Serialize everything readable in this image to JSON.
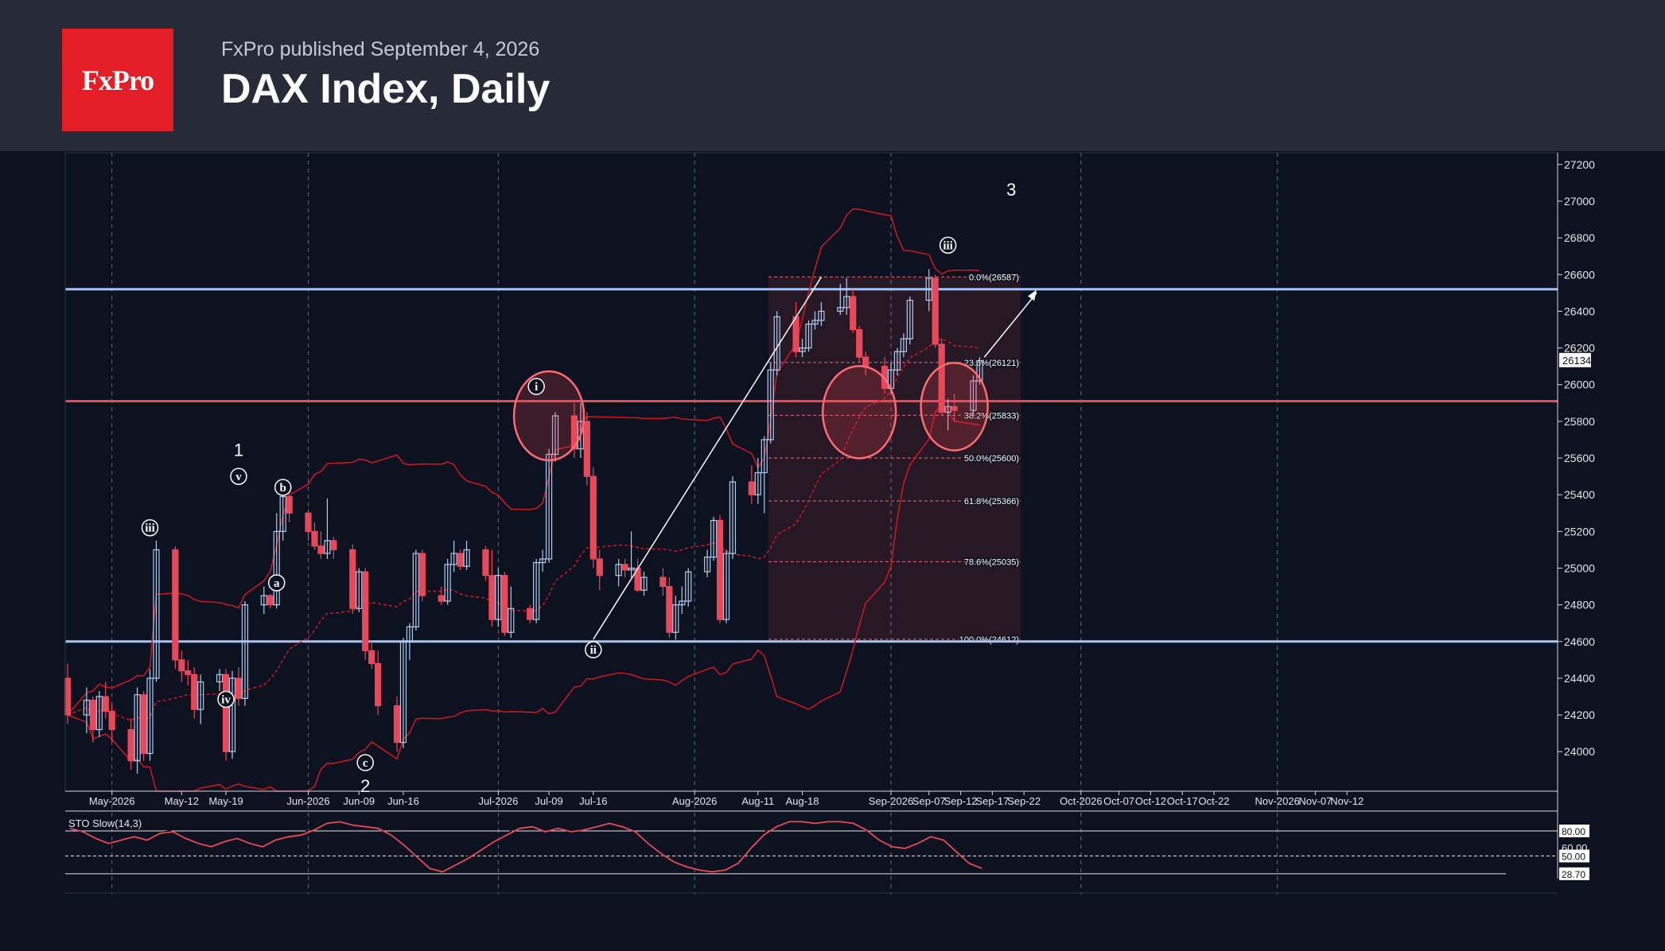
{
  "header": {
    "logo_text": "FxPro",
    "published": "FxPro published September 4, 2026",
    "title": "DAX Index, Daily"
  },
  "colors": {
    "background": "#0c1220",
    "header_bg": "#272b37",
    "logo_bg": "#e41e26",
    "bull_candle": "#aecbf0",
    "bear_candle": "#e8495a",
    "support_line": "#a7c2f6",
    "pivot_line": "#f2464f",
    "bollinger": "#c8171f"
  },
  "chart_data": [
    {
      "type": "candlestick",
      "title": "DAX Index, Daily",
      "y_axis_ticks": [
        24000,
        24200,
        24400,
        24600,
        24800,
        25000,
        25200,
        25400,
        25600,
        25800,
        26000,
        26200,
        26400,
        26600,
        26800,
        27000,
        27200
      ],
      "ylim": [
        23800,
        27260
      ],
      "current_price_label": "26134",
      "x_axis_labels": [
        "May-2026",
        "May-12",
        "May-19",
        "Jun-2026",
        "Jun-09",
        "Jun-16",
        "Jul-2026",
        "Jul-09",
        "Jul-16",
        "Aug-2026",
        "Aug-11",
        "Aug-18",
        "Sep-2026",
        "Sep-07",
        "Sep-12",
        "Sep-17",
        "Sep-22",
        "Oct-2026",
        "Oct-07",
        "Oct-12",
        "Oct-17",
        "Oct-22",
        "Nov-2026",
        "Nov-07",
        "Nov-12"
      ],
      "horizontal_levels": [
        {
          "kind": "resistance",
          "value": 26520,
          "color": "#a7c2f6"
        },
        {
          "kind": "pivot",
          "value": 25910,
          "color": "#f2464f"
        },
        {
          "kind": "support",
          "value": 24600,
          "color": "#a7c2f6"
        }
      ],
      "fibonacci": {
        "levels": [
          {
            "label": "0.0%(26587)",
            "value": 26587
          },
          {
            "label": "23.6%(26121)",
            "value": 26121
          },
          {
            "label": "38.2%(25833)",
            "value": 25833
          },
          {
            "label": "50.0%(25600)",
            "value": 25600
          },
          {
            "label": "61.8%(25366)",
            "value": 25366
          },
          {
            "label": "78.6%(25035)",
            "value": 25035
          },
          {
            "label": "100.0%(24612)",
            "value": 24612
          }
        ]
      },
      "wave_labels": [
        {
          "text": "iii",
          "date": "2026-05-07",
          "price": 25220
        },
        {
          "text": "v",
          "date": "2026-05-21",
          "price": 25500
        },
        {
          "text": "b",
          "date": "2026-05-28",
          "price": 25440
        },
        {
          "text": "a",
          "date": "2026-05-27",
          "price": 24920
        },
        {
          "text": "iv",
          "date": "2026-05-19",
          "price": 24285
        },
        {
          "text": "c",
          "date": "2026-06-10",
          "price": 23940
        },
        {
          "text": "i",
          "date": "2026-07-07",
          "price": 25990
        },
        {
          "text": "ii",
          "date": "2026-07-16",
          "price": 24555
        },
        {
          "text": "iii",
          "date": "2026-09-10",
          "price": 26760
        }
      ],
      "degree_labels": [
        {
          "text": "1",
          "date": "2026-05-21",
          "price": 25610
        },
        {
          "text": "2",
          "date": "2026-06-10",
          "price": 23780
        },
        {
          "text": "3",
          "date": "2026-09-20",
          "price": 27030
        }
      ],
      "candles": [
        {
          "date": "2026-04-24",
          "o": 24400,
          "h": 24480,
          "l": 24150,
          "c": 24200
        },
        {
          "date": "2026-04-27",
          "o": 24200,
          "h": 24350,
          "l": 24100,
          "c": 24280
        },
        {
          "date": "2026-04-28",
          "o": 24280,
          "h": 24300,
          "l": 24050,
          "c": 24120
        },
        {
          "date": "2026-04-29",
          "o": 24120,
          "h": 24330,
          "l": 24080,
          "c": 24300
        },
        {
          "date": "2026-04-30",
          "o": 24300,
          "h": 24380,
          "l": 24180,
          "c": 24220
        },
        {
          "date": "2026-05-01",
          "o": 24220,
          "h": 24260,
          "l": 24050,
          "c": 24120
        },
        {
          "date": "2026-05-04",
          "o": 24120,
          "h": 24180,
          "l": 23900,
          "c": 23950
        },
        {
          "date": "2026-05-05",
          "o": 23950,
          "h": 24350,
          "l": 23880,
          "c": 24310
        },
        {
          "date": "2026-05-06",
          "o": 24310,
          "h": 24330,
          "l": 23950,
          "c": 23990
        },
        {
          "date": "2026-05-07",
          "o": 23990,
          "h": 24450,
          "l": 23950,
          "c": 24400
        },
        {
          "date": "2026-05-08",
          "o": 24400,
          "h": 25150,
          "l": 24380,
          "c": 25100
        },
        {
          "date": "2026-05-11",
          "o": 25100,
          "h": 25120,
          "l": 24450,
          "c": 24500
        },
        {
          "date": "2026-05-12",
          "o": 24500,
          "h": 24550,
          "l": 24380,
          "c": 24440
        },
        {
          "date": "2026-05-13",
          "o": 24440,
          "h": 24500,
          "l": 24360,
          "c": 24420
        },
        {
          "date": "2026-05-14",
          "o": 24420,
          "h": 24460,
          "l": 24180,
          "c": 24230
        },
        {
          "date": "2026-05-15",
          "o": 24230,
          "h": 24420,
          "l": 24150,
          "c": 24380
        },
        {
          "date": "2026-05-18",
          "o": 24380,
          "h": 24450,
          "l": 24330,
          "c": 24420
        },
        {
          "date": "2026-05-19",
          "o": 24420,
          "h": 24450,
          "l": 23950,
          "c": 24000
        },
        {
          "date": "2026-05-20",
          "o": 24000,
          "h": 24440,
          "l": 23960,
          "c": 24400
        },
        {
          "date": "2026-05-21",
          "o": 24400,
          "h": 24460,
          "l": 24250,
          "c": 24290
        },
        {
          "date": "2026-05-22",
          "o": 24290,
          "h": 24820,
          "l": 24250,
          "c": 24800
        },
        {
          "date": "2026-05-25",
          "o": 24800,
          "h": 24900,
          "l": 24750,
          "c": 24850
        },
        {
          "date": "2026-05-26",
          "o": 24850,
          "h": 24860,
          "l": 24780,
          "c": 24800
        },
        {
          "date": "2026-05-27",
          "o": 24800,
          "h": 25300,
          "l": 24780,
          "c": 25200
        },
        {
          "date": "2026-05-28",
          "o": 25200,
          "h": 25430,
          "l": 25150,
          "c": 25390
        },
        {
          "date": "2026-05-29",
          "o": 25390,
          "h": 25400,
          "l": 25250,
          "c": 25300
        },
        {
          "date": "2026-06-01",
          "o": 25300,
          "h": 25320,
          "l": 25150,
          "c": 25200
        },
        {
          "date": "2026-06-02",
          "o": 25200,
          "h": 25250,
          "l": 25100,
          "c": 25120
        },
        {
          "date": "2026-06-03",
          "o": 25120,
          "h": 25200,
          "l": 25050,
          "c": 25080
        },
        {
          "date": "2026-06-04",
          "o": 25080,
          "h": 25380,
          "l": 25050,
          "c": 25150
        },
        {
          "date": "2026-06-05",
          "o": 25150,
          "h": 25170,
          "l": 25050,
          "c": 25100
        },
        {
          "date": "2026-06-08",
          "o": 25100,
          "h": 25130,
          "l": 24750,
          "c": 24780
        },
        {
          "date": "2026-06-09",
          "o": 24780,
          "h": 25000,
          "l": 24760,
          "c": 24980
        },
        {
          "date": "2026-06-10",
          "o": 24980,
          "h": 25000,
          "l": 24500,
          "c": 24550
        },
        {
          "date": "2026-06-11",
          "o": 24550,
          "h": 24600,
          "l": 24450,
          "c": 24480
        },
        {
          "date": "2026-06-12",
          "o": 24480,
          "h": 24550,
          "l": 24200,
          "c": 24250
        },
        {
          "date": "2026-06-15",
          "o": 24250,
          "h": 24300,
          "l": 24000,
          "c": 24050
        },
        {
          "date": "2026-06-16",
          "o": 24050,
          "h": 24620,
          "l": 24020,
          "c": 24600
        },
        {
          "date": "2026-06-17",
          "o": 24600,
          "h": 24700,
          "l": 24500,
          "c": 24680
        },
        {
          "date": "2026-06-18",
          "o": 24680,
          "h": 25100,
          "l": 24660,
          "c": 25080
        },
        {
          "date": "2026-06-19",
          "o": 25080,
          "h": 25100,
          "l": 24820,
          "c": 24850
        },
        {
          "date": "2026-06-22",
          "o": 24850,
          "h": 24900,
          "l": 24800,
          "c": 24820
        },
        {
          "date": "2026-06-23",
          "o": 24820,
          "h": 25050,
          "l": 24800,
          "c": 25020
        },
        {
          "date": "2026-06-24",
          "o": 25020,
          "h": 25150,
          "l": 24980,
          "c": 25080
        },
        {
          "date": "2026-06-25",
          "o": 25080,
          "h": 25100,
          "l": 24990,
          "c": 25010
        },
        {
          "date": "2026-06-26",
          "o": 25010,
          "h": 25150,
          "l": 24990,
          "c": 25100
        },
        {
          "date": "2026-06-29",
          "o": 25100,
          "h": 25120,
          "l": 24930,
          "c": 24960
        },
        {
          "date": "2026-06-30",
          "o": 24960,
          "h": 25100,
          "l": 24680,
          "c": 24720
        },
        {
          "date": "2026-07-01",
          "o": 24720,
          "h": 25000,
          "l": 24680,
          "c": 24960
        },
        {
          "date": "2026-07-02",
          "o": 24960,
          "h": 24980,
          "l": 24630,
          "c": 24650
        },
        {
          "date": "2026-07-03",
          "o": 24650,
          "h": 24900,
          "l": 24620,
          "c": 24780
        },
        {
          "date": "2026-07-06",
          "o": 24780,
          "h": 24800,
          "l": 24700,
          "c": 24720
        },
        {
          "date": "2026-07-07",
          "o": 24720,
          "h": 25050,
          "l": 24700,
          "c": 25030
        },
        {
          "date": "2026-07-08",
          "o": 25030,
          "h": 25100,
          "l": 24980,
          "c": 25050
        },
        {
          "date": "2026-07-09",
          "o": 25050,
          "h": 25650,
          "l": 25030,
          "c": 25620
        },
        {
          "date": "2026-07-10",
          "o": 25620,
          "h": 25850,
          "l": 25580,
          "c": 25830
        },
        {
          "date": "2026-07-13",
          "o": 25830,
          "h": 25900,
          "l": 25600,
          "c": 25650
        },
        {
          "date": "2026-07-14",
          "o": 25650,
          "h": 25900,
          "l": 25600,
          "c": 25800
        },
        {
          "date": "2026-07-15",
          "o": 25800,
          "h": 25850,
          "l": 25450,
          "c": 25500
        },
        {
          "date": "2026-07-16",
          "o": 25500,
          "h": 25550,
          "l": 25000,
          "c": 25050
        },
        {
          "date": "2026-07-17",
          "o": 25050,
          "h": 25100,
          "l": 24880,
          "c": 24960
        },
        {
          "date": "2026-07-20",
          "o": 24960,
          "h": 25050,
          "l": 24900,
          "c": 25020
        },
        {
          "date": "2026-07-21",
          "o": 25020,
          "h": 25050,
          "l": 24950,
          "c": 24990
        },
        {
          "date": "2026-07-22",
          "o": 24990,
          "h": 25200,
          "l": 24950,
          "c": 25000
        },
        {
          "date": "2026-07-23",
          "o": 25000,
          "h": 25050,
          "l": 24870,
          "c": 24880
        },
        {
          "date": "2026-07-24",
          "o": 24880,
          "h": 24980,
          "l": 24850,
          "c": 24950
        },
        {
          "date": "2026-07-27",
          "o": 24950,
          "h": 25000,
          "l": 24850,
          "c": 24900
        },
        {
          "date": "2026-07-28",
          "o": 24900,
          "h": 24950,
          "l": 24620,
          "c": 24650
        },
        {
          "date": "2026-07-29",
          "o": 24650,
          "h": 24850,
          "l": 24610,
          "c": 24800
        },
        {
          "date": "2026-07-30",
          "o": 24800,
          "h": 24900,
          "l": 24750,
          "c": 24820
        },
        {
          "date": "2026-07-31",
          "o": 24820,
          "h": 25000,
          "l": 24790,
          "c": 24980
        },
        {
          "date": "2026-08-03",
          "o": 24980,
          "h": 25100,
          "l": 24950,
          "c": 25060
        },
        {
          "date": "2026-08-04",
          "o": 25060,
          "h": 25280,
          "l": 25040,
          "c": 25260
        },
        {
          "date": "2026-08-05",
          "o": 25260,
          "h": 25290,
          "l": 24700,
          "c": 24720
        },
        {
          "date": "2026-08-06",
          "o": 24720,
          "h": 25100,
          "l": 24700,
          "c": 25080
        },
        {
          "date": "2026-08-07",
          "o": 25080,
          "h": 25500,
          "l": 25050,
          "c": 25470
        },
        {
          "date": "2026-08-10",
          "o": 25470,
          "h": 25560,
          "l": 25350,
          "c": 25400
        },
        {
          "date": "2026-08-11",
          "o": 25400,
          "h": 25600,
          "l": 25350,
          "c": 25520
        },
        {
          "date": "2026-08-12",
          "o": 25520,
          "h": 25720,
          "l": 25300,
          "c": 25700
        },
        {
          "date": "2026-08-13",
          "o": 25700,
          "h": 26120,
          "l": 25680,
          "c": 26080
        },
        {
          "date": "2026-08-14",
          "o": 26080,
          "h": 26400,
          "l": 26050,
          "c": 26370
        },
        {
          "date": "2026-08-17",
          "o": 26370,
          "h": 26450,
          "l": 26150,
          "c": 26180
        },
        {
          "date": "2026-08-18",
          "o": 26180,
          "h": 26250,
          "l": 26150,
          "c": 26200
        },
        {
          "date": "2026-08-19",
          "o": 26200,
          "h": 26350,
          "l": 26180,
          "c": 26330
        },
        {
          "date": "2026-08-20",
          "o": 26330,
          "h": 26400,
          "l": 26300,
          "c": 26350
        },
        {
          "date": "2026-08-21",
          "o": 26350,
          "h": 26450,
          "l": 26320,
          "c": 26400
        },
        {
          "date": "2026-08-24",
          "o": 26400,
          "h": 26550,
          "l": 26380,
          "c": 26420
        },
        {
          "date": "2026-08-25",
          "o": 26420,
          "h": 26580,
          "l": 26380,
          "c": 26480
        },
        {
          "date": "2026-08-26",
          "o": 26480,
          "h": 26520,
          "l": 26280,
          "c": 26300
        },
        {
          "date": "2026-08-27",
          "o": 26300,
          "h": 26320,
          "l": 26120,
          "c": 26150
        },
        {
          "date": "2026-08-28",
          "o": 26150,
          "h": 26180,
          "l": 26050,
          "c": 26100
        },
        {
          "date": "2026-08-31",
          "o": 26100,
          "h": 26150,
          "l": 25950,
          "c": 25980
        },
        {
          "date": "2026-09-01",
          "o": 25980,
          "h": 26120,
          "l": 25950,
          "c": 26080
        },
        {
          "date": "2026-09-02",
          "o": 26080,
          "h": 26200,
          "l": 26050,
          "c": 26180
        },
        {
          "date": "2026-09-03",
          "o": 26180,
          "h": 26280,
          "l": 26150,
          "c": 26250
        },
        {
          "date": "2026-09-04",
          "o": 26250,
          "h": 26480,
          "l": 26220,
          "c": 26460
        },
        {
          "date": "2026-09-07",
          "o": 26460,
          "h": 26630,
          "l": 26400,
          "c": 26580
        },
        {
          "date": "2026-09-08",
          "o": 26580,
          "h": 26600,
          "l": 26200,
          "c": 26220
        },
        {
          "date": "2026-09-09",
          "o": 26220,
          "h": 26250,
          "l": 25830,
          "c": 25850
        },
        {
          "date": "2026-09-10",
          "o": 25850,
          "h": 25920,
          "l": 25750,
          "c": 25880
        },
        {
          "date": "2026-09-11",
          "o": 25880,
          "h": 25950,
          "l": 25800,
          "c": 25860
        },
        {
          "date": "2026-09-14",
          "o": 25860,
          "h": 26050,
          "l": 25830,
          "c": 26020
        },
        {
          "date": "2026-09-15",
          "o": 26020,
          "h": 26150,
          "l": 26000,
          "c": 26130
        }
      ]
    },
    {
      "type": "line",
      "title": "STO Slow(14,3)",
      "ylim": [
        20,
        100
      ],
      "level_labels": [
        "80.00",
        "60.00",
        "50.00",
        "28.70"
      ],
      "series": [
        {
          "name": "STO Slow(14,3)",
          "values": [
            84,
            80,
            72,
            66,
            70,
            74,
            70,
            78,
            80,
            72,
            66,
            62,
            68,
            72,
            66,
            62,
            70,
            74,
            76,
            82,
            90,
            92,
            88,
            86,
            84,
            76,
            64,
            50,
            36,
            32,
            40,
            48,
            58,
            68,
            76,
            84,
            86,
            80,
            84,
            80,
            82,
            86,
            90,
            86,
            80,
            66,
            54,
            44,
            38,
            34,
            32,
            34,
            42,
            60,
            76,
            86,
            92,
            92,
            90,
            92,
            92,
            90,
            82,
            70,
            62,
            60,
            66,
            74,
            70,
            56,
            42,
            36
          ]
        }
      ]
    }
  ]
}
